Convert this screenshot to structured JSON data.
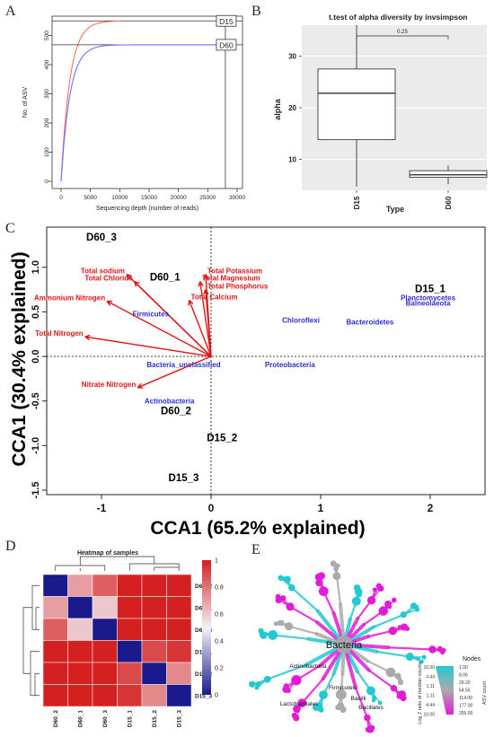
{
  "panel_letters": [
    "A",
    "B",
    "C",
    "D",
    "E"
  ],
  "chart_data": [
    {
      "panel": "A",
      "type": "line",
      "xlabel": "Sequencing depth (number of reads)",
      "ylabel": "No. of ASV",
      "xlim": [
        0,
        30000
      ],
      "ylim": [
        0,
        560
      ],
      "xticks": [
        "0",
        "5000",
        "10000",
        "15000",
        "20000",
        "25000",
        "30000"
      ],
      "yticks": [
        "0",
        "100",
        "200",
        "300",
        "400",
        "500"
      ],
      "series": [
        {
          "name": "D15",
          "color": "#ff6f5e",
          "plateau": 550,
          "max_depth": 10200
        },
        {
          "name": "D60",
          "color": "#6f6fff",
          "plateau": 468,
          "max_depth": 28000
        }
      ],
      "grid": false
    },
    {
      "panel": "B",
      "type": "box",
      "title": "t.test of alpha diversity by invsimpson",
      "xlabel": "Type",
      "ylabel": "alpha",
      "categories": [
        "D15",
        "D60"
      ],
      "ylim": [
        4,
        36
      ],
      "yticks": [
        "10",
        "20",
        "30"
      ],
      "boxes": [
        {
          "name": "D15",
          "min": 4.7,
          "q1": 13.8,
          "median": 22.8,
          "q3": 27.5,
          "max": 36.0
        },
        {
          "name": "D60",
          "min": 5.2,
          "q1": 6.5,
          "median": 7.0,
          "q3": 7.8,
          "max": 8.8
        }
      ],
      "p_value": "0.25",
      "background": "#ebebeb"
    },
    {
      "panel": "C",
      "type": "scatter",
      "xlabel": "CCA1 (65.2% explained)",
      "ylabel": "CCA1 (30.4% explained)",
      "xlim": [
        -1.5,
        2.5
      ],
      "ylim": [
        -1.55,
        1.45
      ],
      "xticks": [
        "-1",
        "0",
        "1",
        "2"
      ],
      "yticks": [
        "-1.5",
        "-1.0",
        "-0.5",
        "0.0",
        "0.5",
        "1.0"
      ],
      "samples": [
        {
          "label": "D60_3",
          "x": -1.0,
          "y": 1.3
        },
        {
          "label": "D60_1",
          "x": -0.42,
          "y": 0.85
        },
        {
          "label": "D15_1",
          "x": 2.0,
          "y": 0.72
        },
        {
          "label": "D60_2",
          "x": -0.32,
          "y": -0.65
        },
        {
          "label": "D15_2",
          "x": 0.1,
          "y": -0.95
        },
        {
          "label": "D15_3",
          "x": -0.25,
          "y": -1.4
        }
      ],
      "taxa": [
        {
          "label": "Firmicutes",
          "x": -0.55,
          "y": 0.45
        },
        {
          "label": "Chloroflexi",
          "x": 0.82,
          "y": 0.38
        },
        {
          "label": "Bacteroidetes",
          "x": 1.45,
          "y": 0.36
        },
        {
          "label": "Planctomycetes",
          "x": 1.98,
          "y": 0.63
        },
        {
          "label": "Balneolaeota",
          "x": 1.98,
          "y": 0.57
        },
        {
          "label": "Bacteria_unclassified",
          "x": -0.25,
          "y": -0.12
        },
        {
          "label": "Proteobacteria",
          "x": 0.72,
          "y": -0.12
        },
        {
          "label": "Actinobacteria",
          "x": -0.38,
          "y": -0.53
        }
      ],
      "arrows": [
        {
          "label": "Total sodium",
          "x": -0.77,
          "y": 0.92
        },
        {
          "label": "Total Chloride",
          "x": -0.7,
          "y": 0.84
        },
        {
          "label": "Ammonium Nitrogen",
          "x": -0.95,
          "y": 0.62
        },
        {
          "label": "Total Potassium",
          "x": -0.05,
          "y": 0.92
        },
        {
          "label": "Total Magnesium",
          "x": -0.1,
          "y": 0.84
        },
        {
          "label": "Total Phosphorus",
          "x": -0.05,
          "y": 0.75
        },
        {
          "label": "Total Calcium",
          "x": -0.2,
          "y": 0.63
        },
        {
          "label": "Total Nitrogen",
          "x": -1.15,
          "y": 0.22
        },
        {
          "label": "Nitrate Nitrogen",
          "x": -0.67,
          "y": -0.35
        }
      ],
      "colors": {
        "samples": "#000000",
        "taxa": "#2d2dd2",
        "arrows": "#e01414"
      }
    },
    {
      "panel": "D",
      "type": "heatmap",
      "title": "Heatmap of samples",
      "rows": [
        "D60_2",
        "D60_1",
        "D60_3",
        "D15_1",
        "D15_2",
        "D15_3"
      ],
      "columns": [
        "D60_2",
        "D60_1",
        "D60_3",
        "D15_1",
        "D15_2",
        "D15_3"
      ],
      "values": [
        [
          0.0,
          0.7,
          0.85,
          1.0,
          1.0,
          1.0
        ],
        [
          0.7,
          0.0,
          0.6,
          1.0,
          1.0,
          1.0
        ],
        [
          0.85,
          0.6,
          0.0,
          1.0,
          1.0,
          1.0
        ],
        [
          1.0,
          1.0,
          1.0,
          0.0,
          0.9,
          0.95
        ],
        [
          1.0,
          1.0,
          1.0,
          0.9,
          0.0,
          0.75
        ],
        [
          1.0,
          1.0,
          1.0,
          0.95,
          0.75,
          0.0
        ]
      ],
      "colorbar_ticks": [
        "0",
        "0.2",
        "0.4",
        "0.6",
        "0.8",
        "1"
      ],
      "colors": {
        "low": "#1a1a8c",
        "mid": "#f2f2f8",
        "high": "#d42020"
      }
    },
    {
      "panel": "E",
      "type": "tree",
      "root_label": "Bacteria",
      "node_labels": [
        "Bacteria",
        "Actinobacteria",
        "Firmicutes",
        "Bacilli",
        "Bacillales",
        "Lactobacillales"
      ],
      "legend_title": "Nodes",
      "color_scale_label": "Log 2 ratio of median counts",
      "color_scale_ticks": [
        "10.00",
        "4.44",
        "1.11",
        "1.11",
        "4.44",
        "10.00"
      ],
      "size_label": "ASV count",
      "size_ticks": [
        "1.00",
        "8.06",
        "29.20",
        "64.50",
        "114.00",
        "177.00",
        "255.00"
      ],
      "colors": {
        "high": "#e11cd6",
        "low": "#23c8d0",
        "neutral": "#aaaaaa"
      }
    }
  ]
}
